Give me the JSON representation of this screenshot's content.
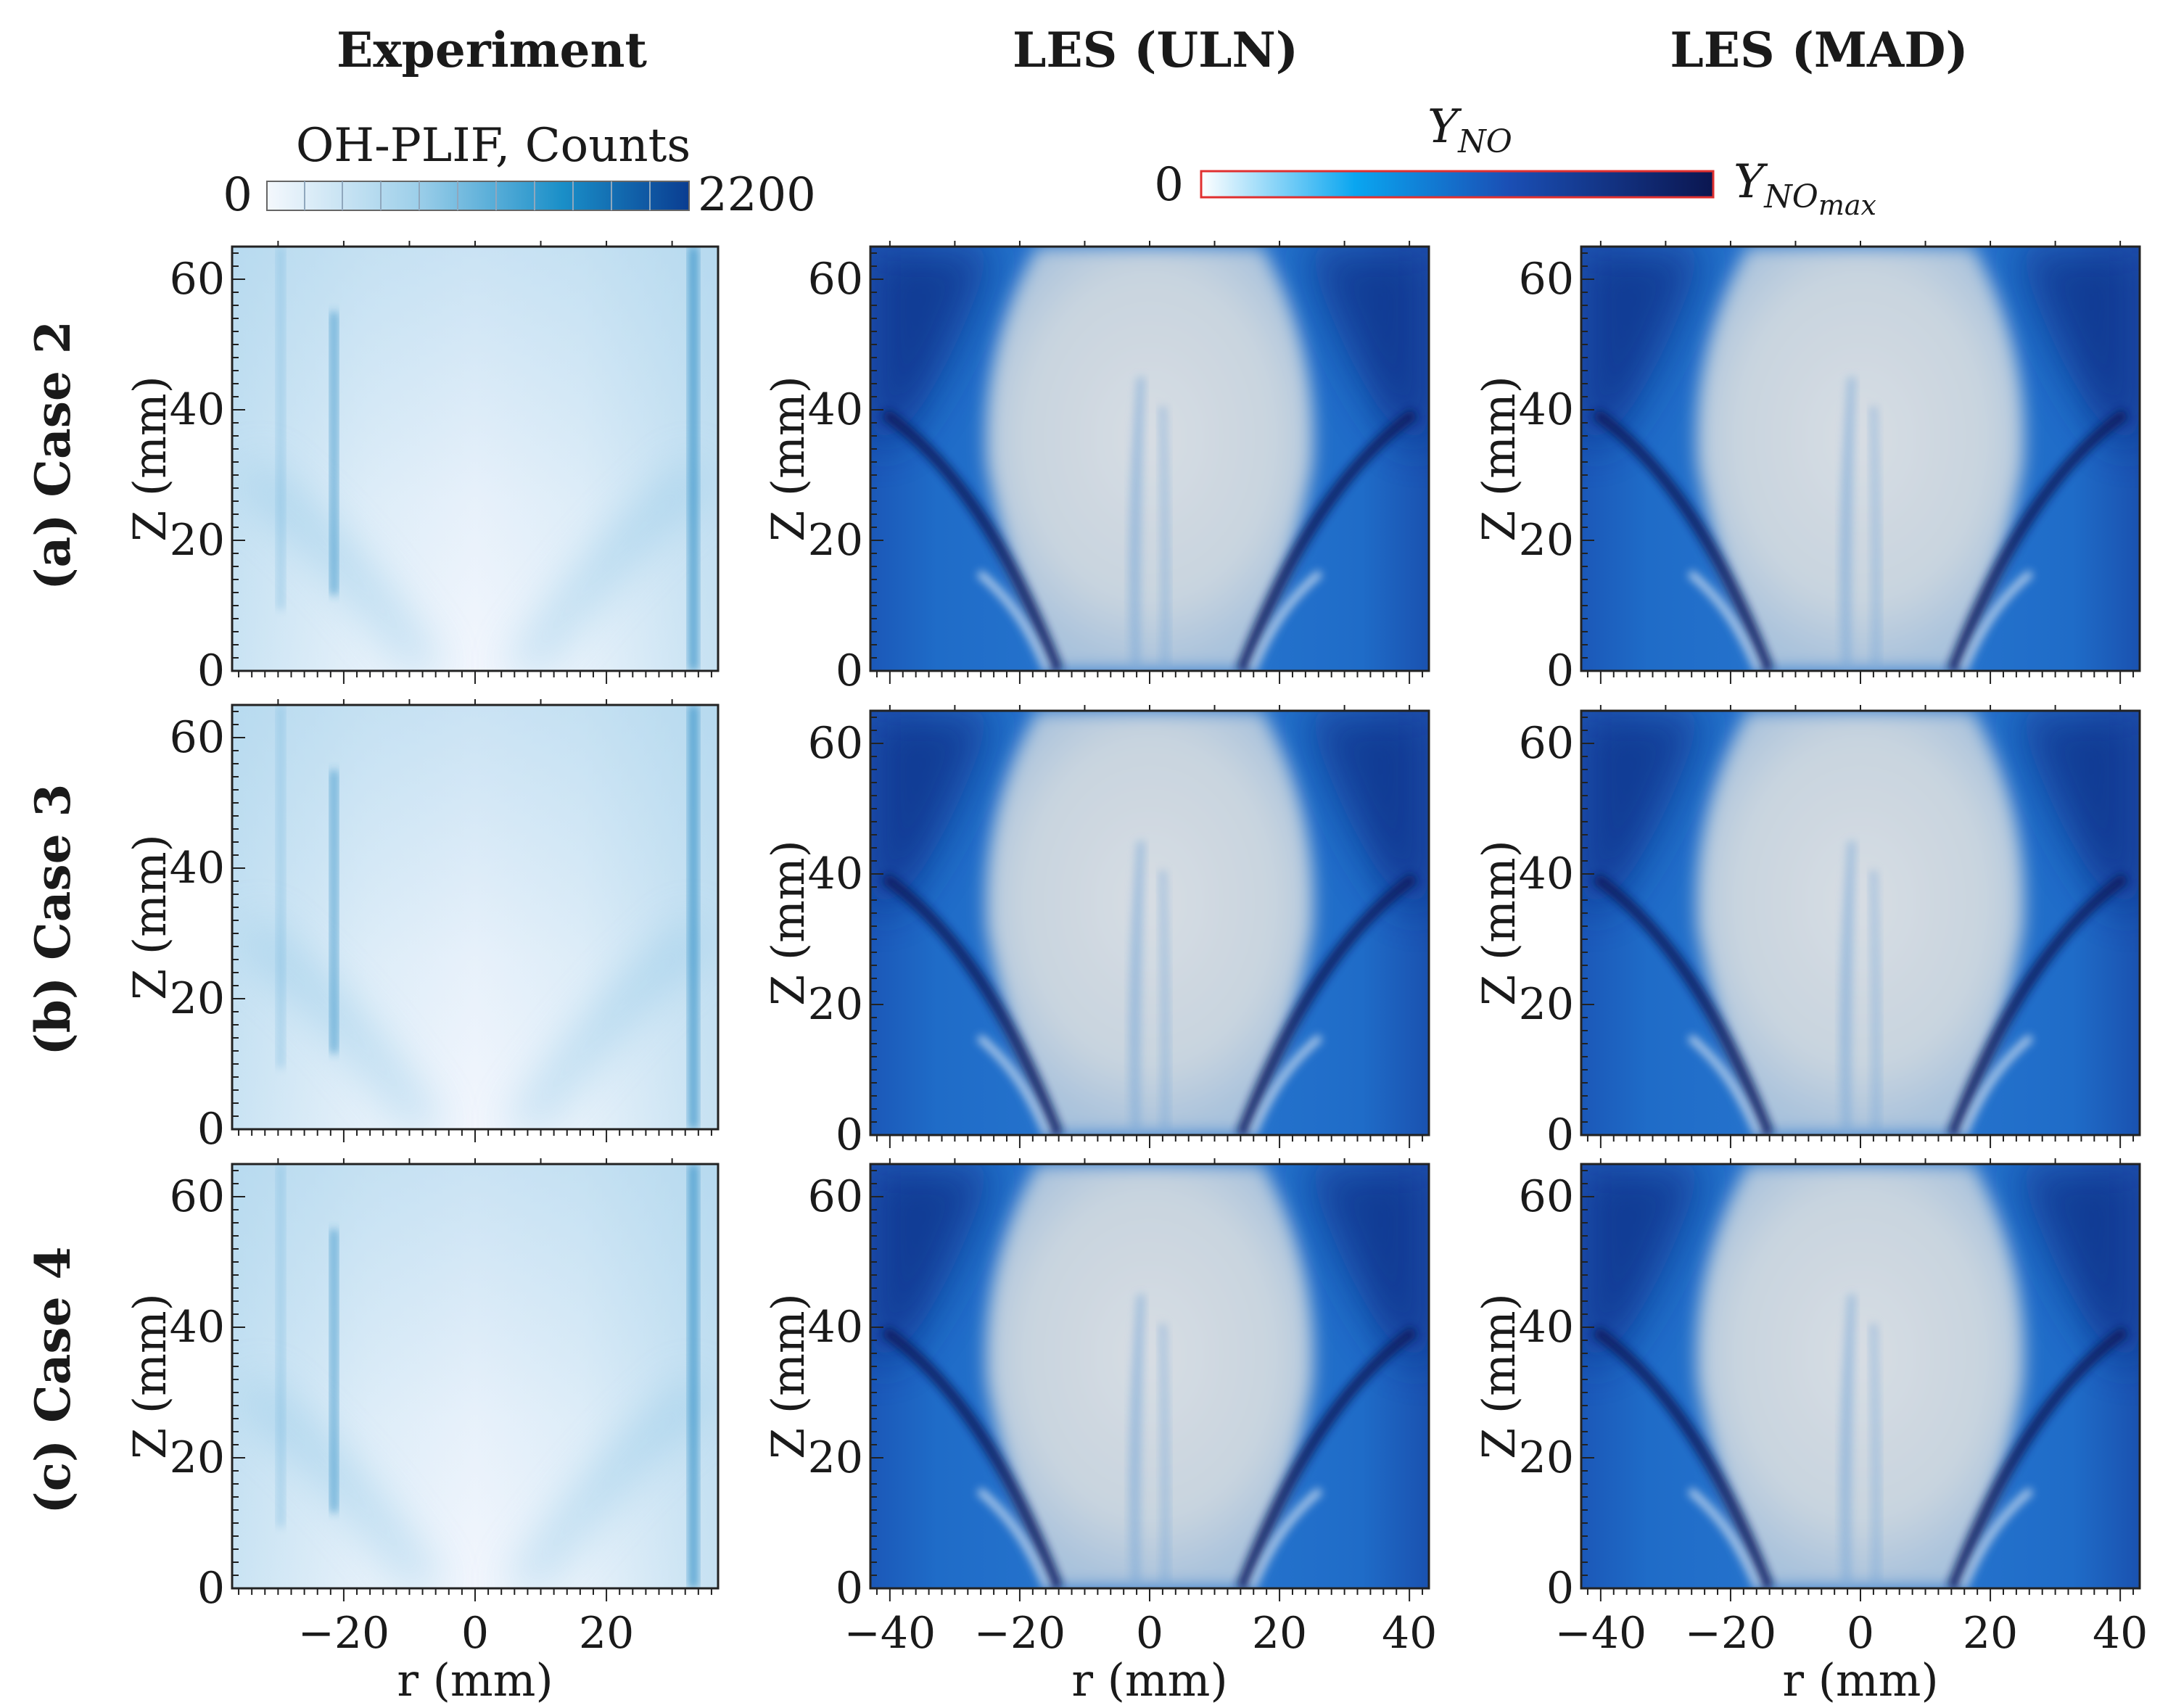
{
  "columns": [
    "Experiment",
    "LES (ULN)",
    "LES (MAD)"
  ],
  "rows": [
    "(a) Case 2",
    "(b) Case 3",
    "(c) Case 4"
  ],
  "axes": {
    "xlabel": "r (mm)",
    "ylabel": "Z (mm)",
    "exp_xticks": [
      "−20",
      "0",
      "20"
    ],
    "les_xticks": [
      "−40",
      "−20",
      "0",
      "20",
      "40"
    ],
    "yticks": [
      "0",
      "20",
      "40",
      "60"
    ]
  },
  "colorbar_exp": {
    "label": "OH-PLIF, Counts",
    "min": "0",
    "max": "2200",
    "colors": [
      "#f4f8fd",
      "#0a3d91"
    ]
  },
  "colorbar_les": {
    "label_main": "Y",
    "label_sub": "NO",
    "min": "0",
    "max_main": "Y",
    "max_sub": "NO",
    "max_subsub": "max",
    "colors": [
      "#ffffff",
      "#0a7fe0",
      "#0b1a5c"
    ]
  }
}
